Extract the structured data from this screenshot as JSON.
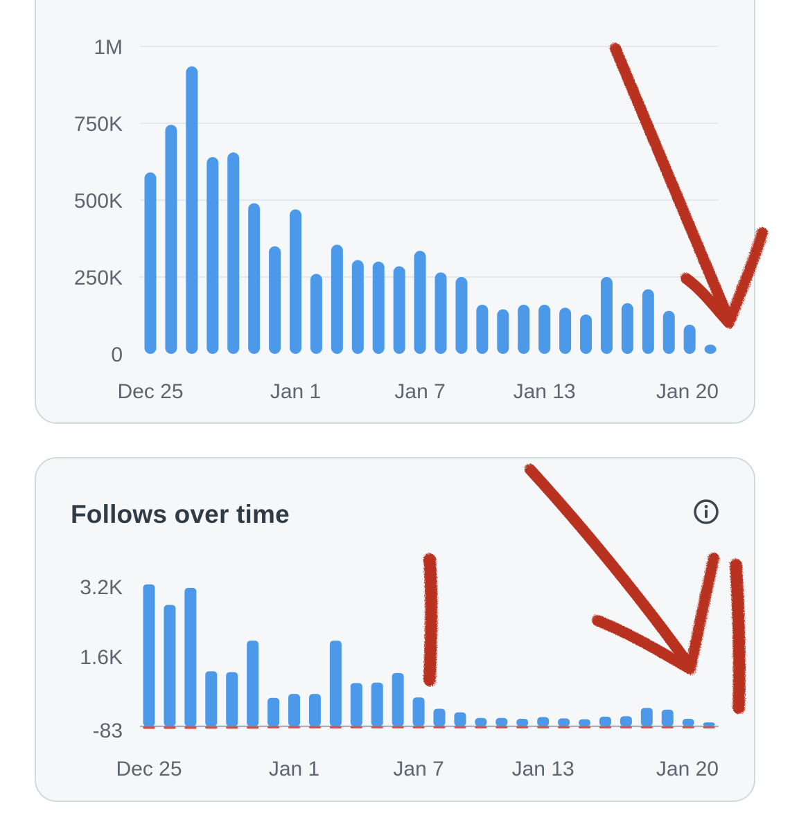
{
  "colors": {
    "bar": "#4c99ea",
    "unfollow": "#e0494b",
    "grid": "#e3e8ec",
    "baseline": "#9aa4ad",
    "tick_text": "#5b6670",
    "annotation": "#b3200f"
  },
  "follows_card": {
    "title": "Follows over time",
    "info_icon": "info-circle-icon"
  },
  "chart_data": [
    {
      "type": "bar",
      "title": "",
      "xlabel": "",
      "ylabel": "",
      "x_start": "Dec 25",
      "x_end": "Jan 21",
      "x_ticks": [
        "Dec 25",
        "Jan 1",
        "Jan 7",
        "Jan 13",
        "Jan 20"
      ],
      "y_ticks": [
        "1M",
        "750K",
        "500K",
        "250K",
        "0"
      ],
      "ylim": [
        0,
        1000000
      ],
      "grid": true,
      "series": [
        {
          "values": [
            590000,
            745000,
            935000,
            640000,
            655000,
            490000,
            350000,
            470000,
            260000,
            355000,
            305000,
            300000,
            285000,
            335000,
            265000,
            250000,
            160000,
            145000,
            160000,
            160000,
            150000,
            128000,
            250000,
            165000,
            210000,
            140000,
            95000,
            30000
          ]
        }
      ]
    },
    {
      "type": "bar",
      "title": "Follows over time",
      "xlabel": "",
      "ylabel": "",
      "x_start": "Dec 25",
      "x_end": "Jan 21",
      "x_ticks": [
        "Dec 25",
        "Jan 1",
        "Jan 7",
        "Jan 13",
        "Jan 20"
      ],
      "y_ticks": [
        "3.2K",
        "1.6K",
        "-83"
      ],
      "ylim": [
        -83,
        3200
      ],
      "grid": false,
      "series": [
        {
          "name": "follows",
          "values": [
            3250,
            2780,
            3170,
            1260,
            1240,
            1960,
            650,
            740,
            740,
            1960,
            990,
            1000,
            1220,
            660,
            400,
            320,
            190,
            190,
            170,
            210,
            180,
            160,
            220,
            230,
            420,
            380,
            170,
            90
          ]
        },
        {
          "name": "unfollows",
          "values": [
            -60,
            -60,
            -60,
            -55,
            -55,
            -55,
            -45,
            -45,
            -45,
            -50,
            -45,
            -45,
            -45,
            -45,
            -45,
            -40,
            -40,
            -40,
            -40,
            -40,
            -40,
            -40,
            -40,
            -40,
            -45,
            -45,
            -40,
            -40
          ]
        }
      ]
    }
  ]
}
